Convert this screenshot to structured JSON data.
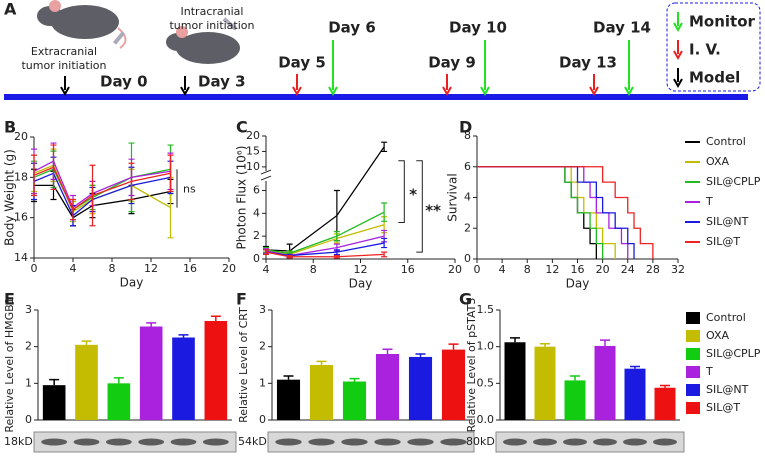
{
  "timeline": {
    "panel": "A",
    "notes": [
      [
        "Extracranial",
        "tumor initiation"
      ],
      [
        "Intracranial",
        "tumor initiation"
      ]
    ],
    "events": [
      {
        "label": "Day 0",
        "color": "#000000"
      },
      {
        "label": "Day 3",
        "color": "#000000"
      },
      {
        "label": "Day 5",
        "color": "#e82020"
      },
      {
        "label": "Day 6",
        "color": "#22e022"
      },
      {
        "label": "Day 9",
        "color": "#e82020"
      },
      {
        "label": "Day 10",
        "color": "#22e022"
      },
      {
        "label": "Day 13",
        "color": "#e82020"
      },
      {
        "label": "Day 14",
        "color": "#22e022"
      }
    ],
    "legend": [
      {
        "label": "Monitor",
        "color": "#22e022"
      },
      {
        "label": "I. V.",
        "color": "#e82020"
      },
      {
        "label": "Model",
        "color": "#000000"
      }
    ],
    "line_color": "#1a1ae6"
  },
  "chart_data": [
    {
      "type": "line",
      "panel": "B",
      "y_label": "Body Weight (g)",
      "x_label": "Day",
      "annotations": [
        "ns"
      ],
      "x": [
        0,
        2,
        4,
        6,
        10,
        14
      ],
      "xlim": [
        0,
        20
      ],
      "xticks": [
        0,
        4,
        8,
        12,
        16,
        20
      ],
      "ylim": [
        14,
        20
      ],
      "yticks": [
        14,
        16,
        18,
        20
      ],
      "series": [
        {
          "name": "Control",
          "color": "#000000",
          "values": [
            17.6,
            17.6,
            16.0,
            16.6,
            16.9,
            17.3
          ],
          "errors": [
            0.8,
            0.7,
            0.4,
            0.6,
            0.7,
            0.6
          ]
        },
        {
          "name": "OXA",
          "color": "#c4bc00",
          "values": [
            18.2,
            18.6,
            16.3,
            16.9,
            17.6,
            16.5
          ],
          "errors": [
            0.9,
            0.8,
            0.5,
            0.7,
            0.8,
            1.5
          ]
        },
        {
          "name": "SIL@CPLP",
          "color": "#22bb22",
          "values": [
            18.0,
            18.4,
            16.4,
            17.0,
            18.0,
            18.4
          ],
          "errors": [
            0.8,
            0.9,
            0.5,
            0.6,
            1.7,
            1.2
          ]
        },
        {
          "name": "T",
          "color": "#aa22dd",
          "values": [
            18.3,
            18.8,
            16.5,
            17.2,
            18.0,
            18.3
          ],
          "errors": [
            1.1,
            0.9,
            0.6,
            0.6,
            0.9,
            0.9
          ]
        },
        {
          "name": "SIL@NT",
          "color": "#1a1ae0",
          "values": [
            17.8,
            18.2,
            16.1,
            16.9,
            17.6,
            18.0
          ],
          "errors": [
            0.9,
            0.8,
            0.5,
            0.6,
            0.9,
            0.8
          ]
        },
        {
          "name": "SIL@T",
          "color": "#ee2222",
          "values": [
            18.1,
            18.5,
            16.4,
            17.1,
            17.8,
            18.2
          ],
          "errors": [
            1.0,
            1.1,
            0.5,
            1.5,
            0.9,
            0.9
          ]
        }
      ]
    },
    {
      "type": "line",
      "panel": "C",
      "y_label": "Photon Flux (10⁶)",
      "x_label": "Day",
      "annotations": [
        "*",
        "**"
      ],
      "x": [
        4,
        6,
        10,
        14
      ],
      "xlim": [
        4,
        20
      ],
      "xticks": [
        4,
        8,
        12,
        16,
        20
      ],
      "ylim": [
        0,
        20
      ],
      "ybreak": [
        7,
        8
      ],
      "yticks": [
        0,
        2,
        4,
        6,
        10,
        15,
        20
      ],
      "series": [
        {
          "color": "#000000",
          "values": [
            0.8,
            0.7,
            3.8,
            16.5
          ],
          "errors": [
            0.3,
            0.6,
            2.2,
            1.5
          ]
        },
        {
          "color": "#c4bc00",
          "values": [
            0.7,
            0.4,
            1.8,
            3.0
          ],
          "errors": [
            0.2,
            0.2,
            0.4,
            0.7
          ]
        },
        {
          "color": "#22bb22",
          "values": [
            0.8,
            0.5,
            2.0,
            4.1
          ],
          "errors": [
            0.2,
            0.2,
            0.4,
            0.8
          ]
        },
        {
          "color": "#aa22dd",
          "values": [
            0.7,
            0.3,
            1.0,
            2.0
          ],
          "errors": [
            0.2,
            0.1,
            0.3,
            0.5
          ]
        },
        {
          "color": "#1a1ae0",
          "values": [
            0.6,
            0.3,
            0.6,
            1.4
          ],
          "errors": [
            0.2,
            0.1,
            0.2,
            0.4
          ]
        },
        {
          "color": "#ee2222",
          "values": [
            0.6,
            0.2,
            0.2,
            0.4
          ],
          "errors": [
            0.2,
            0.1,
            0.1,
            0.2
          ]
        }
      ]
    },
    {
      "type": "step",
      "panel": "D",
      "y_label": "Survival",
      "x_label": "Day",
      "xlim": [
        0,
        32
      ],
      "xticks": [
        0,
        4,
        8,
        12,
        16,
        20,
        24,
        28,
        32
      ],
      "ylim": [
        0,
        8
      ],
      "yticks": [
        0,
        2,
        4,
        6,
        8
      ],
      "series": [
        {
          "color": "#000000",
          "x": [
            0,
            14,
            15,
            16,
            17,
            18,
            19
          ],
          "values": [
            6,
            5,
            4,
            3,
            2,
            1,
            0
          ]
        },
        {
          "color": "#c4bc00",
          "x": [
            0,
            15,
            16,
            17,
            19,
            20,
            22
          ],
          "values": [
            6,
            5,
            4,
            3,
            2,
            1,
            0
          ]
        },
        {
          "color": "#22bb22",
          "x": [
            0,
            14,
            15,
            16,
            18,
            19,
            20
          ],
          "values": [
            6,
            5,
            4,
            3,
            2,
            1,
            0
          ]
        },
        {
          "color": "#aa22dd",
          "x": [
            0,
            17,
            18,
            19,
            21,
            23,
            24
          ],
          "values": [
            6,
            5,
            4,
            3,
            2,
            1,
            0
          ]
        },
        {
          "color": "#1a1ae0",
          "x": [
            0,
            16,
            19,
            20,
            22,
            24,
            25
          ],
          "values": [
            6,
            5,
            4,
            3,
            2,
            1,
            0
          ]
        },
        {
          "color": "#ee2222",
          "x": [
            0,
            20,
            22,
            24,
            25,
            26,
            28
          ],
          "values": [
            6,
            5,
            4,
            3,
            2,
            1,
            0
          ]
        }
      ]
    },
    {
      "type": "bar",
      "panel": "E",
      "y_label": "Relative Level of HMGB1",
      "blot_label": "18kD",
      "categories": [
        "Control",
        "OXA",
        "SIL@CPLP",
        "T",
        "SIL@NT",
        "SIL@T"
      ],
      "colors": [
        "#000000",
        "#c4bc00",
        "#11cc11",
        "#aa22dd",
        "#1a1ae0",
        "#ee1111"
      ],
      "values": [
        0.95,
        2.05,
        1.0,
        2.55,
        2.25,
        2.7
      ],
      "errors": [
        0.15,
        0.1,
        0.15,
        0.1,
        0.07,
        0.13
      ],
      "ylim": [
        0,
        3
      ],
      "yticks": [
        0,
        1,
        2,
        3
      ]
    },
    {
      "type": "bar",
      "panel": "F",
      "y_label": "Relative Level of CRT",
      "blot_label": "54kD",
      "colors": [
        "#000000",
        "#c4bc00",
        "#11cc11",
        "#aa22dd",
        "#1a1ae0",
        "#ee1111"
      ],
      "values": [
        1.1,
        1.5,
        1.05,
        1.8,
        1.72,
        1.92
      ],
      "errors": [
        0.1,
        0.1,
        0.08,
        0.13,
        0.08,
        0.15
      ],
      "ylim": [
        0,
        3
      ],
      "yticks": [
        0,
        1,
        2,
        3
      ]
    },
    {
      "type": "bar",
      "panel": "G",
      "y_label": "Relative Level of pSTAT3",
      "blot_label": "80kD",
      "colors": [
        "#000000",
        "#c4bc00",
        "#11cc11",
        "#aa22dd",
        "#1a1ae0",
        "#ee1111"
      ],
      "values": [
        1.06,
        1.0,
        0.54,
        1.01,
        0.7,
        0.44
      ],
      "errors": [
        0.06,
        0.04,
        0.06,
        0.08,
        0.03,
        0.03
      ],
      "ylim": [
        0,
        1.5
      ],
      "yticks": [
        {
          "value": 0,
          "label": "0.0"
        },
        {
          "value": 0.5,
          "label": "0.5"
        },
        {
          "value": 1,
          "label": "1.0"
        },
        {
          "value": 1.5,
          "label": "1.5"
        }
      ]
    }
  ]
}
